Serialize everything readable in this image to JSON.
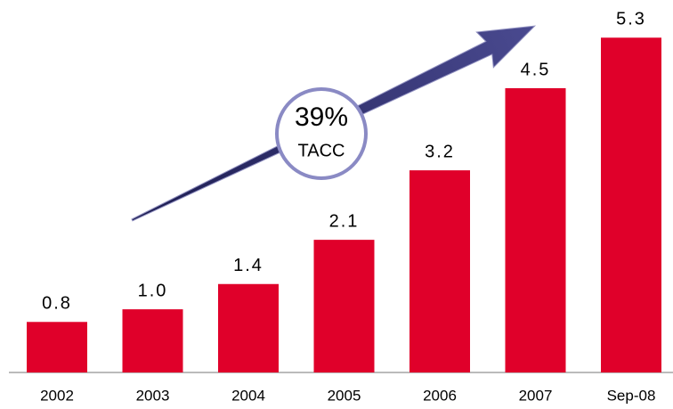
{
  "chart_data": {
    "type": "bar",
    "categories": [
      "2002",
      "2003",
      "2004",
      "2005",
      "2006",
      "2007",
      "Sep-08"
    ],
    "values": [
      0.8,
      1.0,
      1.4,
      2.1,
      3.2,
      4.5,
      5.3
    ],
    "value_labels": [
      "0.8",
      "1.0",
      "1.4",
      "2.1",
      "3.2",
      "4.5",
      "5.3"
    ],
    "color": "#e0002a",
    "ylim": [
      0,
      5.6
    ],
    "annotations": [
      "39%",
      "TACC"
    ]
  }
}
